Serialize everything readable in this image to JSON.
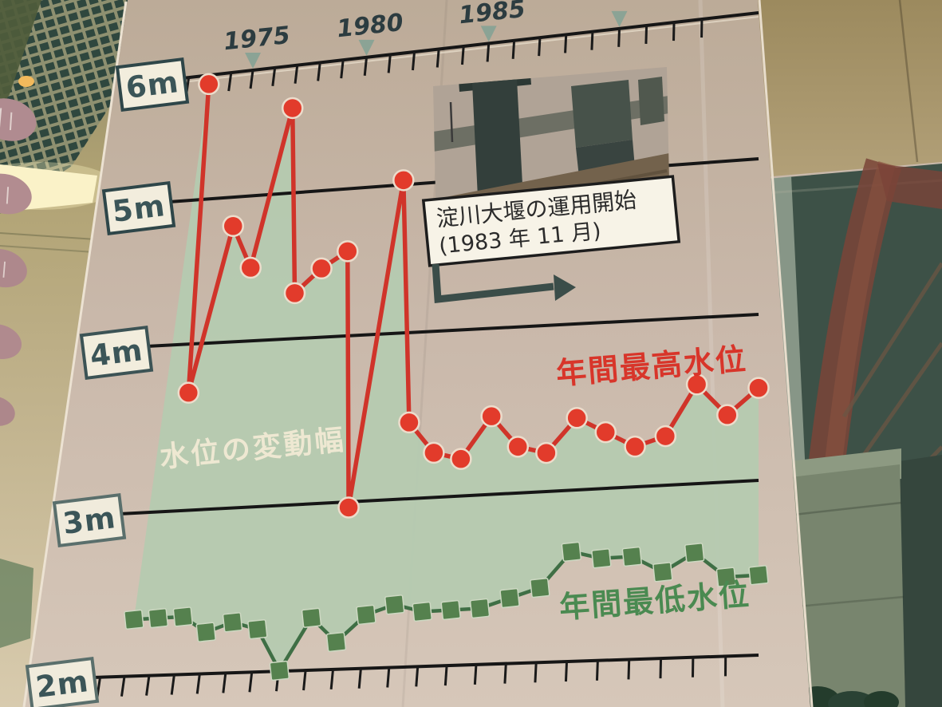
{
  "chart_data": {
    "type": "line",
    "x_years": [
      1973,
      1974,
      1975,
      1976,
      1977,
      1978,
      1979,
      1980,
      1981,
      1982,
      1983,
      1984,
      1985,
      1986,
      1987,
      1988,
      1989,
      1990,
      1991,
      1992,
      1993,
      1994,
      1995
    ],
    "series": [
      {
        "name": "年間最高水位",
        "color": "#d0342a",
        "marker": "circle",
        "values": [
          5.95,
          3.8,
          4.9,
          4.6,
          5.7,
          4.4,
          4.55,
          4.65,
          3.0,
          5.1,
          3.5,
          3.3,
          3.25,
          3.5,
          3.3,
          3.25,
          3.45,
          3.35,
          3.25,
          3.3,
          3.6,
          3.4,
          3.55
        ]
      },
      {
        "name": "年間最低水位",
        "color": "#3f6f45",
        "marker": "square",
        "values": [
          2.4,
          2.4,
          2.4,
          2.3,
          2.35,
          2.3,
          2.05,
          2.35,
          2.2,
          2.35,
          2.4,
          2.35,
          2.35,
          2.35,
          2.4,
          2.45,
          2.65,
          2.6,
          2.6,
          2.5,
          2.6,
          2.45,
          2.45
        ]
      }
    ],
    "band_label": "水位の変動幅",
    "axis": {
      "y_tick_labels": [
        "6m",
        "5m",
        "4m",
        "3m",
        "2m"
      ],
      "ylim": [
        2,
        6.2
      ],
      "x_labeled_years": [
        "1975",
        "1980",
        "1985"
      ],
      "x_marker_years": [
        1975,
        1980,
        1985,
        1990
      ],
      "x_tick_interval_years": 1
    },
    "grid": "horizontal-meter-lines",
    "colors": {
      "area_band": "#b5cab0",
      "marker_max": "#e23b2b",
      "marker_min": "#55814e",
      "triangle": "#8ba395"
    }
  },
  "annotation_box": {
    "line1": "淀川大堰の運用開始",
    "line2": "(1983 年 11 月)"
  }
}
